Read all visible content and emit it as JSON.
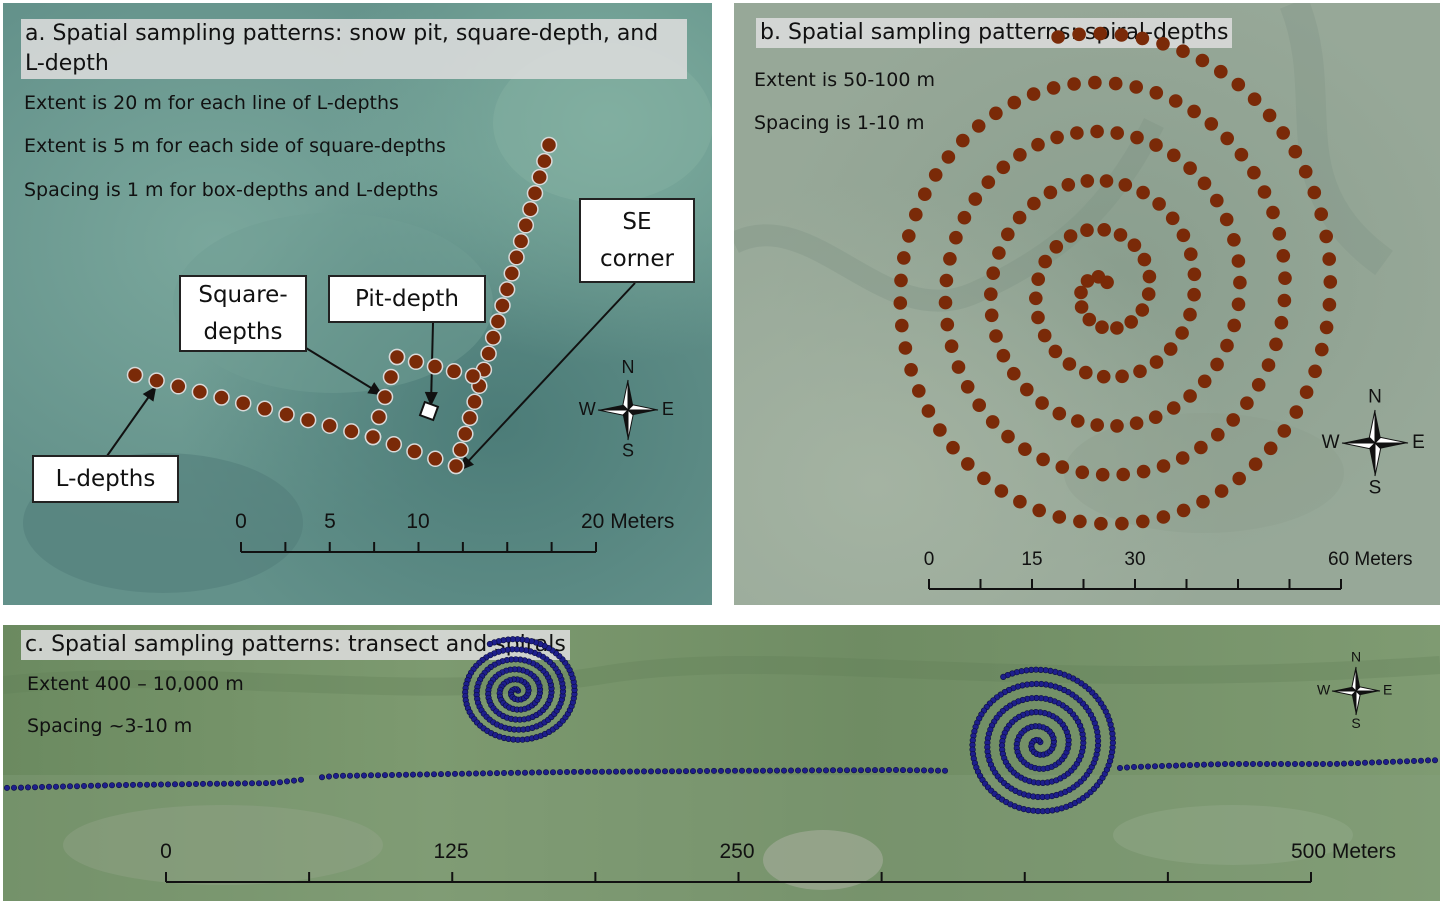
{
  "panel_a": {
    "title": "a. Spatial sampling patterns: snow pit, square-depth,  and L-depth",
    "info": [
      "Extent is 20 m for each line of L-depths",
      "Extent is 5 m for each side of square-depths",
      "Spacing is 1 m for box-depths and L-depths"
    ],
    "callouts": {
      "square": "Square-depths",
      "pit": "Pit-depth",
      "se": "SE corner",
      "l": "L-depths"
    },
    "scale_labels": [
      "0",
      "5",
      "10",
      "20 Meters"
    ],
    "compass": {
      "n": "N",
      "s": "S",
      "e": "E",
      "w": "W"
    },
    "colors": {
      "sample_point": "#7a2a08",
      "background": "#5f8f88"
    }
  },
  "panel_b": {
    "title": "b. Spatial sampling patterns: spiral-depths",
    "info": [
      "Extent is 50-100 m",
      "Spacing is 1-10 m"
    ],
    "scale_labels": [
      "0",
      "15",
      "30",
      "60 Meters"
    ],
    "compass": {
      "n": "N",
      "s": "S",
      "e": "E",
      "w": "W"
    },
    "colors": {
      "sample_point": "#7a2a08",
      "background": "#8fa294"
    }
  },
  "panel_c": {
    "title": "c. Spatial sampling patterns: transect and spirals",
    "info": [
      "Extent 400 – 10,000 m",
      "Spacing ~3-10 m"
    ],
    "scale_labels": [
      "0",
      "125",
      "250",
      "500 Meters"
    ],
    "compass": {
      "n": "N",
      "s": "S",
      "e": "E",
      "w": "W"
    },
    "colors": {
      "sample_point": "#1e1f8c",
      "background": "#6f8d66"
    }
  }
}
